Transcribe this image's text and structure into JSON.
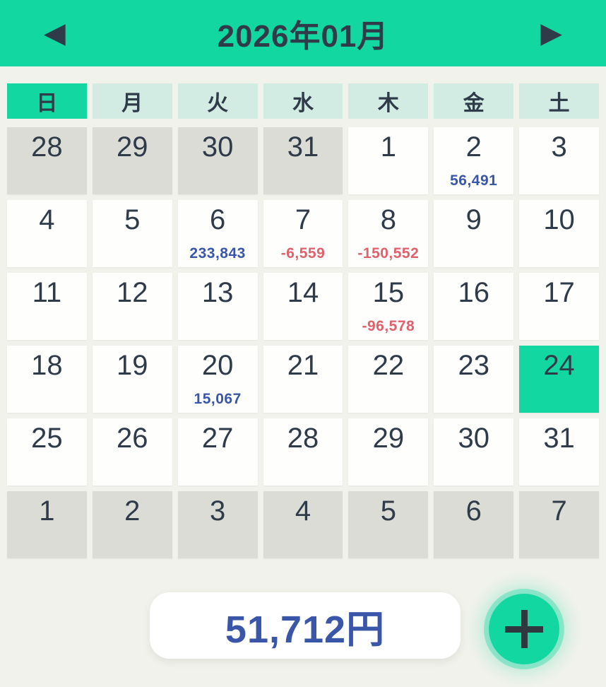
{
  "colors": {
    "accent": "#13d7a1",
    "teal": "#d2ebe3",
    "gray": "#dcdcd7",
    "bg": "#f1f2ec",
    "dark": "#2f3b49",
    "blue": "#3a56a8",
    "red": "#e0606b"
  },
  "header": {
    "title": "2026年01月",
    "prev_icon": "◀",
    "next_icon": "▶"
  },
  "weekdays": [
    {
      "label": "日",
      "highlight": true
    },
    {
      "label": "月",
      "highlight": false
    },
    {
      "label": "火",
      "highlight": false
    },
    {
      "label": "水",
      "highlight": false
    },
    {
      "label": "木",
      "highlight": false
    },
    {
      "label": "金",
      "highlight": false
    },
    {
      "label": "土",
      "highlight": false
    }
  ],
  "weeks": [
    [
      {
        "day": "28",
        "muted": true
      },
      {
        "day": "29",
        "muted": true
      },
      {
        "day": "30",
        "muted": true
      },
      {
        "day": "31",
        "muted": true
      },
      {
        "day": "1"
      },
      {
        "day": "2",
        "amount": "56,491",
        "sign": "pos"
      },
      {
        "day": "3"
      }
    ],
    [
      {
        "day": "4"
      },
      {
        "day": "5"
      },
      {
        "day": "6",
        "amount": "233,843",
        "sign": "pos"
      },
      {
        "day": "7",
        "amount": "-6,559",
        "sign": "neg"
      },
      {
        "day": "8",
        "amount": "-150,552",
        "sign": "neg"
      },
      {
        "day": "9"
      },
      {
        "day": "10"
      }
    ],
    [
      {
        "day": "11"
      },
      {
        "day": "12"
      },
      {
        "day": "13"
      },
      {
        "day": "14"
      },
      {
        "day": "15",
        "amount": "-96,578",
        "sign": "neg"
      },
      {
        "day": "16"
      },
      {
        "day": "17"
      }
    ],
    [
      {
        "day": "18"
      },
      {
        "day": "19"
      },
      {
        "day": "20",
        "amount": "15,067",
        "sign": "pos"
      },
      {
        "day": "21"
      },
      {
        "day": "22"
      },
      {
        "day": "23"
      },
      {
        "day": "24",
        "selected": true
      }
    ],
    [
      {
        "day": "25"
      },
      {
        "day": "26"
      },
      {
        "day": "27"
      },
      {
        "day": "28"
      },
      {
        "day": "29"
      },
      {
        "day": "30"
      },
      {
        "day": "31"
      }
    ],
    [
      {
        "day": "1",
        "muted": true
      },
      {
        "day": "2",
        "muted": true
      },
      {
        "day": "3",
        "muted": true
      },
      {
        "day": "4",
        "muted": true
      },
      {
        "day": "5",
        "muted": true
      },
      {
        "day": "6",
        "muted": true
      },
      {
        "day": "7",
        "muted": true
      }
    ]
  ],
  "footer": {
    "total": "51,712円"
  }
}
